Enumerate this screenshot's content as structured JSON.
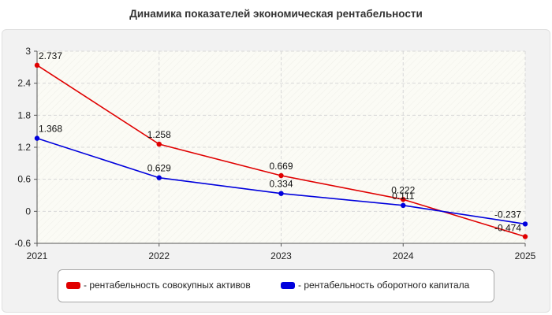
{
  "title": "Динамика показателей экономическая рентабельности",
  "legend": {
    "items": [
      {
        "label": "- рентабельность совокупных активов",
        "color": "#e00000"
      },
      {
        "label": "- рентабельность оборотного капитала",
        "color": "#0000dd"
      }
    ]
  },
  "chart_data": {
    "type": "line",
    "title": "Динамика показателей экономическая рентабельности",
    "x": [
      2021,
      2022,
      2023,
      2024,
      2025
    ],
    "x_tick_labels": [
      "2021",
      "2022",
      "2023",
      "2024",
      "2025"
    ],
    "ylim": [
      -0.6,
      3
    ],
    "y_ticks": [
      -0.6,
      0,
      0.6,
      1.2,
      1.8,
      2.4,
      3
    ],
    "y_tick_labels": [
      "-0.6",
      "0",
      "0.6",
      "1.2",
      "1.8",
      "2.4",
      "3"
    ],
    "grid": true,
    "legend_position": "bottom",
    "series": [
      {
        "name": "- рентабельность совокупных активов",
        "color": "#e00000",
        "values": [
          2.737,
          1.258,
          0.669,
          0.222,
          -0.474
        ],
        "labels": [
          "2.737",
          "1.258",
          "0.669",
          "0.222",
          "-0.474"
        ]
      },
      {
        "name": "- рентабельность оборотного капитала",
        "color": "#0000dd",
        "values": [
          1.368,
          0.629,
          0.334,
          0.111,
          -0.237
        ],
        "labels": [
          "1.368",
          "0.629",
          "0.334",
          "0.111",
          "-0.237"
        ]
      }
    ]
  }
}
